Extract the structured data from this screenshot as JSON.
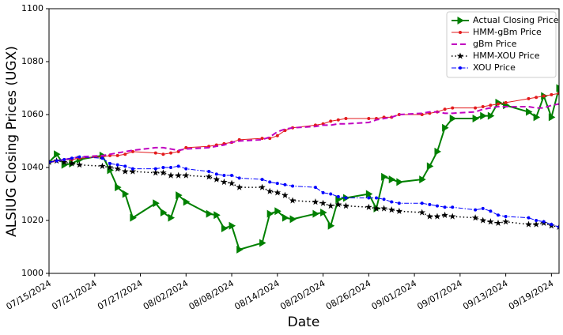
{
  "chart_data": {
    "type": "line",
    "xlabel": "Date",
    "ylabel": "ALSIUG Closing Prices (UGX)",
    "x": [
      "2024-07-15",
      "2024-07-16",
      "2024-07-17",
      "2024-07-18",
      "2024-07-19",
      "2024-07-22",
      "2024-07-23",
      "2024-07-24",
      "2024-07-25",
      "2024-07-26",
      "2024-07-29",
      "2024-07-30",
      "2024-07-31",
      "2024-08-01",
      "2024-08-02",
      "2024-08-05",
      "2024-08-06",
      "2024-08-07",
      "2024-08-08",
      "2024-08-09",
      "2024-08-12",
      "2024-08-13",
      "2024-08-14",
      "2024-08-15",
      "2024-08-16",
      "2024-08-19",
      "2024-08-20",
      "2024-08-21",
      "2024-08-22",
      "2024-08-23",
      "2024-08-26",
      "2024-08-27",
      "2024-08-28",
      "2024-08-29",
      "2024-08-30",
      "2024-09-02",
      "2024-09-03",
      "2024-09-04",
      "2024-09-05",
      "2024-09-06",
      "2024-09-09",
      "2024-09-10",
      "2024-09-11",
      "2024-09-12",
      "2024-09-13",
      "2024-09-16",
      "2024-09-17",
      "2024-09-18",
      "2024-09-19",
      "2024-09-20"
    ],
    "series": [
      {
        "name": "Actual Closing Price",
        "color": "#008000",
        "marker": "triangle-right",
        "linestyle": "solid",
        "linewidth": 2,
        "values": [
          1042,
          1045,
          1041,
          1041.5,
          1043,
          1044.5,
          1039,
          1032.5,
          1030,
          1021,
          1026.5,
          1023,
          1021,
          1029.5,
          1027,
          1022.5,
          1022,
          1017,
          1018,
          1009,
          1011.5,
          1022.5,
          1023.5,
          1021,
          1020.5,
          1022.5,
          1023,
          1018,
          1028,
          1028.5,
          1030,
          1024.5,
          1036.5,
          1035.5,
          1034.5,
          1035.5,
          1040.5,
          1046,
          1055,
          1058.5,
          1058.5,
          1059.5,
          1059.5,
          1064.5,
          1063.5,
          1061,
          1059,
          1067,
          1059,
          1070
        ]
      },
      {
        "name": "HMM-gBm Price",
        "color": "#e31a1c",
        "marker": "dot",
        "linestyle": "solid",
        "linewidth": 1,
        "values": [
          1042,
          1042.5,
          1043,
          1043,
          1043.5,
          1044,
          1044.5,
          1044.5,
          1045,
          1046,
          1045.5,
          1045,
          1045.5,
          1046,
          1047.5,
          1048,
          1048.5,
          1049,
          1049.5,
          1050.5,
          1051,
          1051,
          1052,
          1054,
          1055,
          1056,
          1056.5,
          1057.5,
          1058,
          1058.5,
          1058.5,
          1058.5,
          1059,
          1059,
          1060,
          1060,
          1060.5,
          1061,
          1062,
          1062.5,
          1062.5,
          1063,
          1063.5,
          1064,
          1064.5,
          1066,
          1066.5,
          1067,
          1067.5,
          1068
        ]
      },
      {
        "name": "gBm Price",
        "color": "#c000c0",
        "marker": "none",
        "linestyle": "dashed",
        "linewidth": 2,
        "values": [
          1042,
          1042.5,
          1043,
          1043.5,
          1044,
          1044.5,
          1045,
          1045.5,
          1046,
          1046.5,
          1047.5,
          1047.5,
          1047,
          1046.5,
          1047,
          1047.5,
          1048,
          1048.5,
          1049.5,
          1050,
          1050.5,
          1051.5,
          1053.5,
          1054.5,
          1055,
          1055.5,
          1056,
          1056,
          1056.5,
          1056.5,
          1057,
          1058,
          1058.5,
          1059,
          1060,
          1060.5,
          1061,
          1061,
          1060.5,
          1060.5,
          1061,
          1062,
          1062.5,
          1063,
          1063,
          1063,
          1062.5,
          1062.5,
          1063.5,
          1064
        ]
      },
      {
        "name": "HMM-XOU Price",
        "color": "#000000",
        "marker": "star",
        "linestyle": "dotted",
        "linewidth": 1.5,
        "values": [
          1042,
          1042.5,
          1042,
          1041.5,
          1041,
          1040.5,
          1040,
          1039.5,
          1038.5,
          1038.5,
          1038,
          1038,
          1037,
          1037,
          1037,
          1036.5,
          1035.5,
          1034.5,
          1034,
          1032.5,
          1032.5,
          1031,
          1030.5,
          1029.5,
          1027.5,
          1027,
          1026.5,
          1025.5,
          1026,
          1025.5,
          1025,
          1024.5,
          1024.5,
          1024,
          1023.5,
          1023,
          1021.5,
          1021.5,
          1022,
          1021.5,
          1021,
          1020,
          1019.5,
          1019,
          1019.5,
          1018.5,
          1018.5,
          1019,
          1018,
          1017.5
        ]
      },
      {
        "name": "XOU Price",
        "color": "#0000ff",
        "marker": "dot",
        "linestyle": "dashdot",
        "linewidth": 1,
        "values": [
          1042,
          1042.5,
          1043,
          1043.5,
          1044,
          1043.5,
          1041.5,
          1041,
          1040.5,
          1039.5,
          1039.5,
          1040,
          1040,
          1040.5,
          1039.5,
          1038.5,
          1037.5,
          1037,
          1037,
          1036,
          1035.5,
          1034.5,
          1034,
          1033.5,
          1033,
          1032.5,
          1030.5,
          1030,
          1029,
          1028.5,
          1028.5,
          1028.5,
          1028,
          1027,
          1026.5,
          1026.5,
          1026,
          1025.5,
          1025,
          1025,
          1024,
          1024.5,
          1023.5,
          1022,
          1021.5,
          1021,
          1020,
          1019.5,
          1018.5,
          1017.5
        ]
      }
    ],
    "xlim": [
      "2024-07-15",
      "2024-09-20"
    ],
    "xticks": [
      {
        "value": "2024-07-15",
        "label": "07/15/2024"
      },
      {
        "value": "2024-07-21",
        "label": "07/21/2024"
      },
      {
        "value": "2024-07-27",
        "label": "07/27/2024"
      },
      {
        "value": "2024-08-02",
        "label": "08/02/2024"
      },
      {
        "value": "2024-08-08",
        "label": "08/08/2024"
      },
      {
        "value": "2024-08-14",
        "label": "08/14/2024"
      },
      {
        "value": "2024-08-20",
        "label": "08/20/2024"
      },
      {
        "value": "2024-08-26",
        "label": "08/26/2024"
      },
      {
        "value": "2024-09-01",
        "label": "09/01/2024"
      },
      {
        "value": "2024-09-07",
        "label": "09/07/2024"
      },
      {
        "value": "2024-09-13",
        "label": "09/13/2024"
      },
      {
        "value": "2024-09-19",
        "label": "09/19/2024"
      }
    ],
    "ylim": [
      1000,
      1100
    ],
    "yticks": [
      1000,
      1020,
      1040,
      1060,
      1080,
      1100
    ],
    "grid": false,
    "legend": "upper right"
  }
}
